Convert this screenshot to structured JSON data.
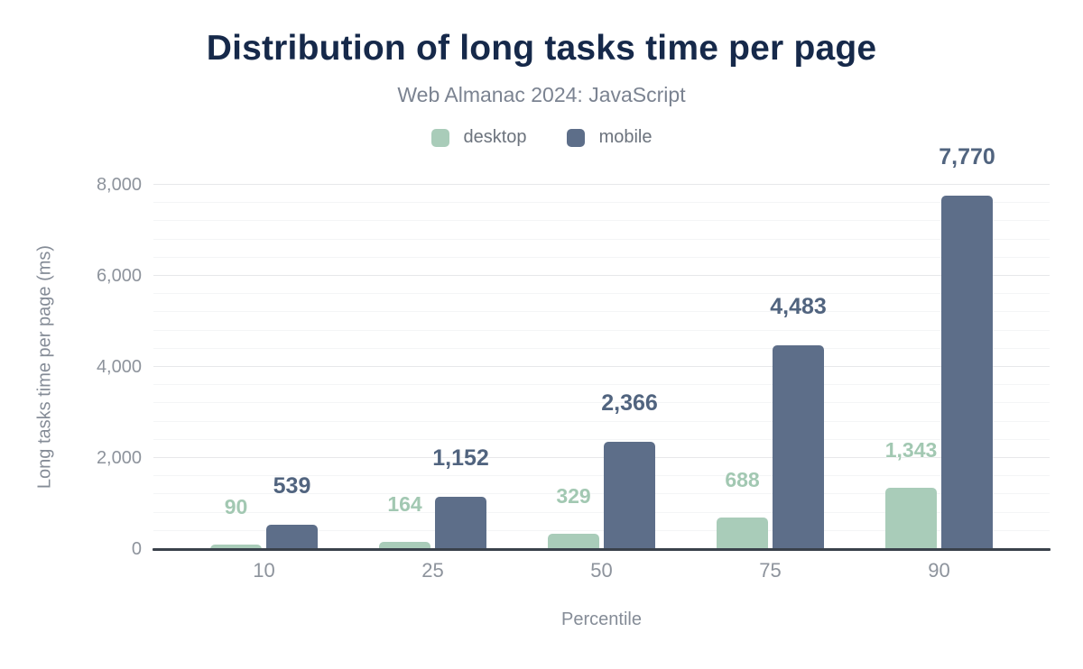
{
  "chart_data": {
    "type": "bar",
    "title": "Distribution of long tasks time per page",
    "subtitle": "Web Almanac 2024: JavaScript",
    "xlabel": "Percentile",
    "ylabel": "Long tasks time per page (ms)",
    "categories": [
      "10",
      "25",
      "50",
      "75",
      "90"
    ],
    "series": [
      {
        "name": "desktop",
        "color": "#a9ccb9",
        "label_color": "#a2c8b2",
        "values": [
          90,
          164,
          329,
          688,
          1343
        ],
        "value_labels": [
          "90",
          "164",
          "329",
          "688",
          "1,343"
        ]
      },
      {
        "name": "mobile",
        "color": "#5d6e89",
        "label_color": "#51647f",
        "values": [
          539,
          1152,
          2366,
          4483,
          7770
        ],
        "value_labels": [
          "539",
          "1,152",
          "2,366",
          "4,483",
          "7,770"
        ]
      }
    ],
    "ylim": [
      0,
      8000
    ],
    "yticks": [
      0,
      2000,
      4000,
      6000,
      8000
    ],
    "ytick_labels": [
      "0",
      "2,000",
      "4,000",
      "6,000",
      "8,000"
    ],
    "minor_grid_interval": 400,
    "major_grid_interval": 2000,
    "grid": true,
    "legend_position": "top"
  },
  "colors": {
    "title": "#16294a",
    "axis_line": "#3a414b"
  }
}
